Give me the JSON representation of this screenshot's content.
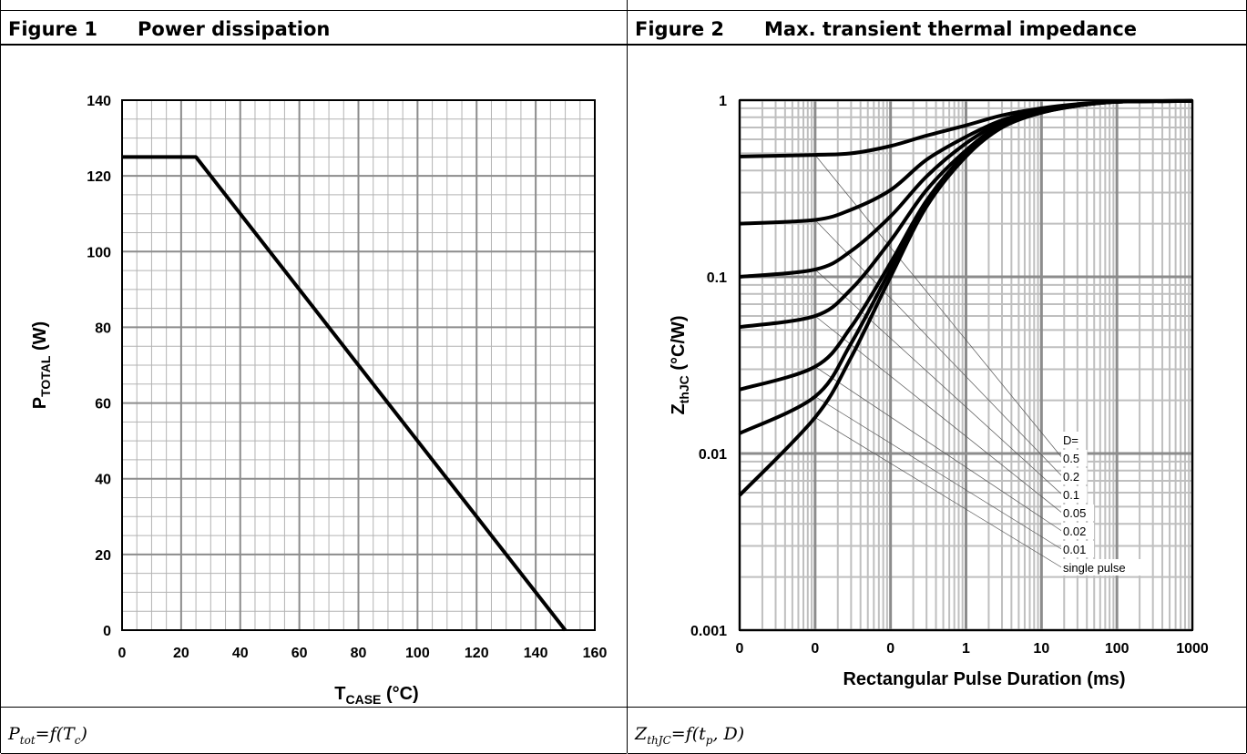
{
  "figure1": {
    "number": "Figure 1",
    "title": "Power dissipation",
    "caption_main": "P",
    "caption_sub": "tot",
    "caption_mid": "=f(T",
    "caption_sub2": "c",
    "caption_end": ")"
  },
  "figure2": {
    "number": "Figure 2",
    "title": "Max. transient thermal impedance",
    "caption_main": "Z",
    "caption_sub": "thJC",
    "caption_end": "=f(t",
    "caption_sub2": "p",
    "caption_tail": ", D)"
  },
  "chart_data": [
    {
      "type": "line",
      "xlabel_main": "T",
      "xlabel_sub": "CASE",
      "xlabel_unit": " (°C)",
      "ylabel_main": "P",
      "ylabel_sub": "TOTAL",
      "ylabel_unit": " (W)",
      "xlim": [
        0,
        160
      ],
      "ylim": [
        0,
        140
      ],
      "xticks": [
        0,
        20,
        40,
        60,
        80,
        100,
        120,
        140,
        160
      ],
      "yticks": [
        0,
        20,
        40,
        60,
        80,
        100,
        120,
        140
      ],
      "grid": true,
      "series": [
        {
          "x": [
            0,
            25,
            150
          ],
          "y": [
            125,
            125,
            0
          ]
        }
      ]
    },
    {
      "type": "line",
      "xlabel": "Rectangular Pulse Duration (ms)",
      "ylabel_main": "Z",
      "ylabel_sub": "thJC",
      "ylabel_unit": " (°C/W)",
      "x_scale": "log",
      "y_scale": "log",
      "xlim": [
        0.001,
        1000
      ],
      "ylim": [
        0.001,
        1
      ],
      "xticks": [
        0.001,
        0.01,
        0.1,
        1,
        10,
        100,
        1000
      ],
      "xtick_labels": [
        "0",
        "0",
        "0",
        "1",
        "10",
        "100",
        "1000"
      ],
      "yticks": [
        0.001,
        0.01,
        0.1,
        1
      ],
      "ytick_labels": [
        "0.001",
        "0.01",
        "0.1",
        "1"
      ],
      "grid": true,
      "legend_title": "D=",
      "legend_placement": "bottom-right",
      "series": [
        {
          "name": "0.5",
          "x": [
            0.001,
            0.01,
            0.03,
            0.1,
            0.3,
            1,
            3,
            10,
            30,
            100,
            1000
          ],
          "y": [
            0.48,
            0.49,
            0.5,
            0.55,
            0.63,
            0.72,
            0.82,
            0.9,
            0.95,
            0.98,
            0.99
          ]
        },
        {
          "name": "0.2",
          "x": [
            0.001,
            0.01,
            0.03,
            0.1,
            0.3,
            1,
            3,
            10,
            30,
            100,
            1000
          ],
          "y": [
            0.2,
            0.21,
            0.24,
            0.31,
            0.46,
            0.62,
            0.77,
            0.88,
            0.94,
            0.98,
            0.99
          ]
        },
        {
          "name": "0.1",
          "x": [
            0.001,
            0.01,
            0.03,
            0.1,
            0.3,
            1,
            3,
            10,
            30,
            100,
            1000
          ],
          "y": [
            0.1,
            0.11,
            0.14,
            0.22,
            0.37,
            0.57,
            0.75,
            0.87,
            0.94,
            0.98,
            0.99
          ]
        },
        {
          "name": "0.05",
          "x": [
            0.001,
            0.01,
            0.03,
            0.1,
            0.3,
            1,
            3,
            10,
            30,
            100,
            1000
          ],
          "y": [
            0.052,
            0.06,
            0.085,
            0.16,
            0.31,
            0.52,
            0.73,
            0.86,
            0.94,
            0.98,
            0.99
          ]
        },
        {
          "name": "0.02",
          "x": [
            0.001,
            0.01,
            0.03,
            0.1,
            0.3,
            1,
            3,
            10,
            30,
            100,
            1000
          ],
          "y": [
            0.023,
            0.031,
            0.052,
            0.12,
            0.27,
            0.5,
            0.72,
            0.86,
            0.93,
            0.98,
            0.99
          ]
        },
        {
          "name": "0.01",
          "x": [
            0.001,
            0.01,
            0.03,
            0.1,
            0.3,
            1,
            3,
            10,
            30,
            100,
            1000
          ],
          "y": [
            0.013,
            0.021,
            0.042,
            0.11,
            0.26,
            0.49,
            0.71,
            0.85,
            0.93,
            0.98,
            0.99
          ]
        },
        {
          "name": "single pulse",
          "x": [
            0.001,
            0.01,
            0.03,
            0.1,
            0.3,
            1,
            3,
            10,
            30,
            100,
            1000
          ],
          "y": [
            0.0058,
            0.016,
            0.035,
            0.1,
            0.25,
            0.48,
            0.7,
            0.85,
            0.93,
            0.98,
            0.99
          ]
        }
      ]
    }
  ]
}
